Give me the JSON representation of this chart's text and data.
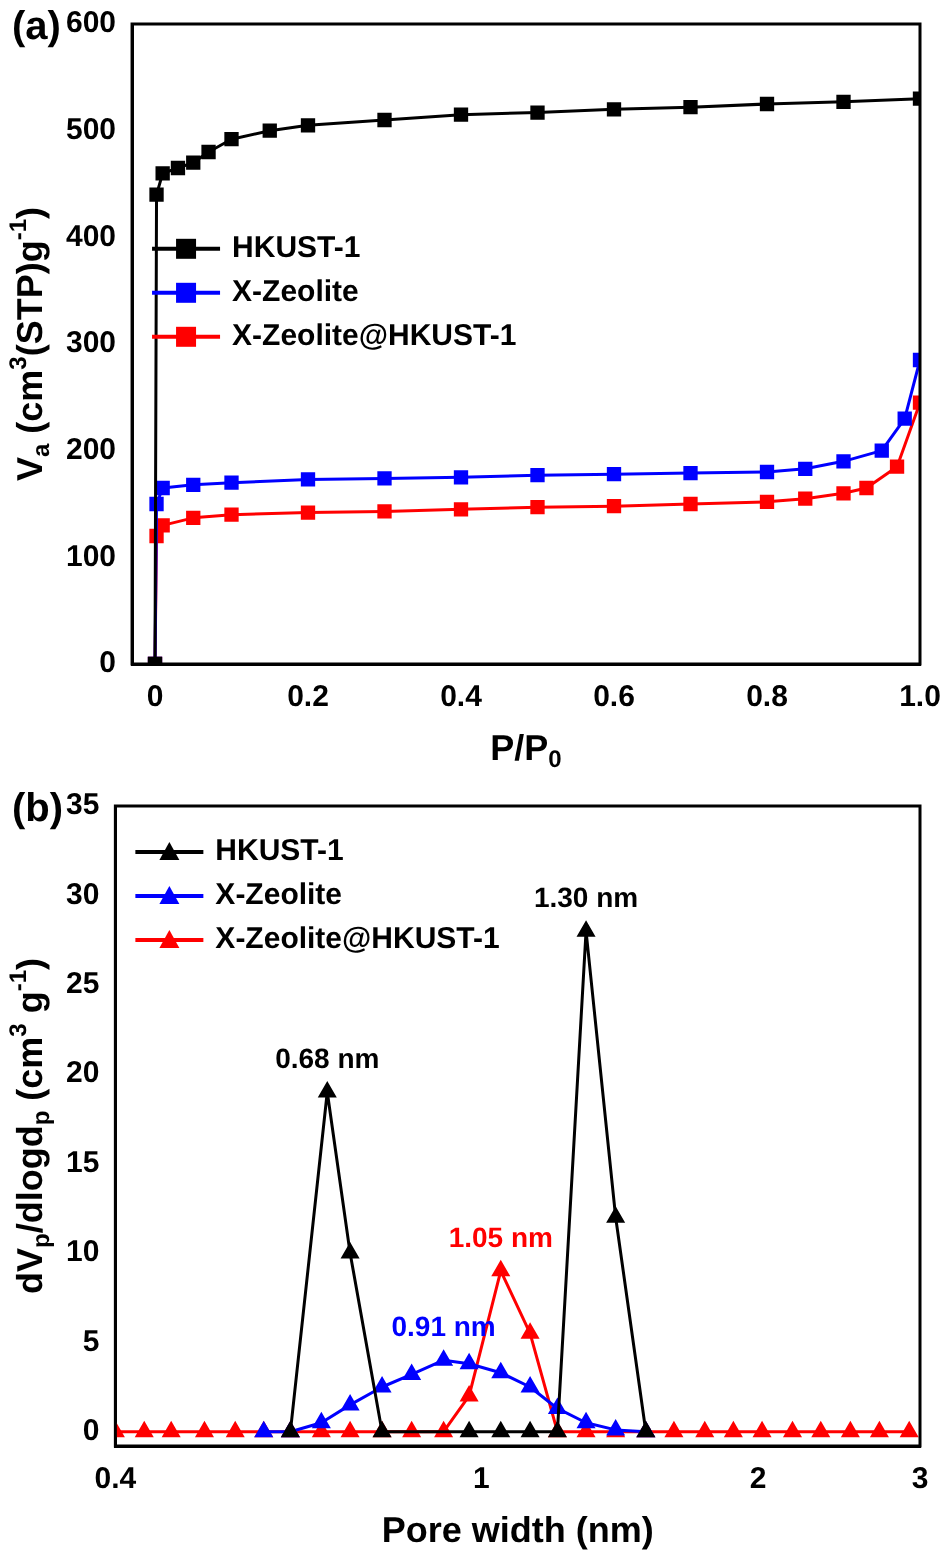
{
  "chart_data": [
    {
      "type": "line",
      "title": "(a)",
      "xlabel": "P/P$_{0}$",
      "ylabel": "V$_{a}$ (cm$^{3}$(STP)g$^{-1}$)",
      "xlim": [
        -0.03,
        1.0
      ],
      "ylim": [
        0,
        600
      ],
      "xticks": [
        0.0,
        {
          "value": 0.2,
          "label": "0.2"
        },
        {
          "value": 0.4,
          "label": "0.4"
        },
        {
          "value": 0.6,
          "label": "0.6"
        },
        {
          "value": 0.8,
          "label": "0.8"
        },
        {
          "value": 1.0,
          "label": "1.0"
        }
      ],
      "yticks": [
        0,
        100,
        200,
        300,
        400,
        500,
        600
      ],
      "marker": "square",
      "legend": "left",
      "grid": false,
      "series": [
        {
          "name": "HKUST-1",
          "color": "#000000",
          "x": [
            0,
            0.002,
            0.01,
            0.03,
            0.05,
            0.07,
            0.1,
            0.15,
            0.2,
            0.3,
            0.4,
            0.5,
            0.6,
            0.7,
            0.8,
            0.9,
            1.0
          ],
          "values": [
            0,
            440,
            460,
            465,
            470,
            480,
            492,
            500,
            505,
            510,
            515,
            517,
            520,
            522,
            525,
            527,
            530
          ]
        },
        {
          "name": "X-Zeolite",
          "color": "#0000ff",
          "x": [
            0,
            0.002,
            0.01,
            0.05,
            0.1,
            0.2,
            0.3,
            0.4,
            0.5,
            0.6,
            0.7,
            0.8,
            0.85,
            0.9,
            0.95,
            0.98,
            1.0
          ],
          "values": [
            0,
            150,
            165,
            168,
            170,
            173,
            174,
            175,
            177,
            178,
            179,
            180,
            183,
            190,
            200,
            230,
            285
          ]
        },
        {
          "name": "X-Zeolite@HKUST-1",
          "color": "#ff0000",
          "x": [
            0,
            0.002,
            0.01,
            0.05,
            0.1,
            0.2,
            0.3,
            0.4,
            0.5,
            0.6,
            0.7,
            0.8,
            0.85,
            0.9,
            0.93,
            0.97,
            1.0
          ],
          "values": [
            0,
            120,
            130,
            137,
            140,
            142,
            143,
            145,
            147,
            148,
            150,
            152,
            155,
            160,
            165,
            185,
            245
          ]
        }
      ]
    },
    {
      "type": "line",
      "title": "(b)",
      "xlabel": "Pore width (nm)",
      "ylabel": "dV$_{p}$/dlogd$_{p}$ (cm$^{3}$ g$^{-1}$)",
      "log": "x",
      "xlim": [
        0.4,
        3
      ],
      "ylim": [
        -0.8,
        35
      ],
      "xticks": [
        0.4,
        1,
        2,
        3
      ],
      "yticks": [
        0,
        5,
        10,
        15,
        20,
        25,
        30,
        35
      ],
      "marker": "triangle",
      "legend": "top left",
      "grid": false,
      "annotations": [
        {
          "text": "0.68 nm",
          "x": 0.68,
          "y": 19
        },
        {
          "text": "1.30 nm",
          "x": 1.3,
          "y": 28
        },
        {
          "text": "1.05 nm",
          "x": 1.05,
          "y": 9
        },
        {
          "text": "0.91 nm",
          "x": 0.91,
          "y": 4
        }
      ],
      "series": [
        {
          "name": "HKUST-1",
          "color": "#000000",
          "x": [
            0.62,
            0.68,
            0.72,
            0.78,
            0.97,
            1.05,
            1.13,
            1.21,
            1.3,
            1.4,
            1.51
          ],
          "values": [
            0,
            19,
            10,
            0,
            0,
            0,
            0,
            0,
            28,
            12,
            0
          ]
        },
        {
          "name": "X-Zeolite",
          "color": "#0000ff",
          "x": [
            0.58,
            0.62,
            0.67,
            0.72,
            0.78,
            0.84,
            0.91,
            0.97,
            1.05,
            1.13,
            1.21,
            1.3,
            1.4,
            1.51
          ],
          "values": [
            0,
            0,
            0.5,
            1.5,
            2.5,
            3.2,
            4,
            3.8,
            3.3,
            2.5,
            1.3,
            0.5,
            0.1,
            0
          ]
        },
        {
          "name": "X-Zeolite@HKUST-1",
          "color": "#ff0000",
          "x": [
            0.4,
            0.43,
            0.46,
            0.5,
            0.54,
            0.58,
            0.62,
            0.67,
            0.72,
            0.78,
            0.84,
            0.91,
            0.97,
            1.05,
            1.13,
            1.21,
            1.3,
            1.4,
            1.51,
            1.62,
            1.75,
            1.88,
            2.02,
            2.18,
            2.34,
            2.52,
            2.71,
            2.92
          ],
          "values": [
            0,
            0,
            0,
            0,
            0,
            0,
            0,
            0,
            0,
            0,
            0,
            0,
            2,
            9,
            5.5,
            0,
            0,
            0,
            0,
            0,
            0,
            0,
            0,
            0,
            0,
            0,
            0,
            0
          ]
        }
      ]
    }
  ]
}
